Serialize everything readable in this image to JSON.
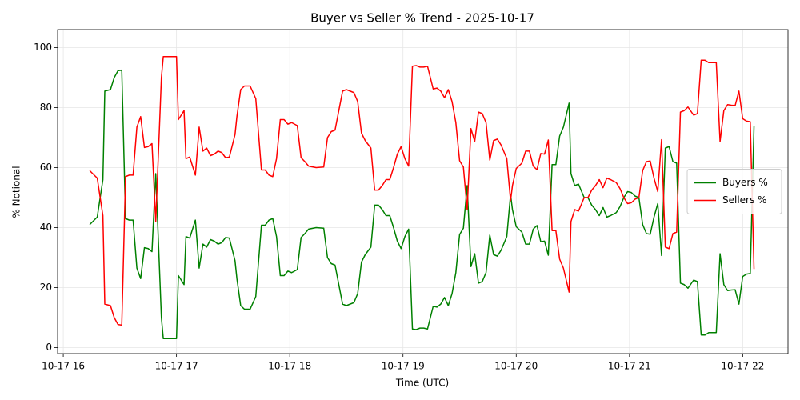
{
  "chart_data": {
    "type": "line",
    "title": "Buyer vs Seller % Trend - 2025-10-17",
    "xlabel": "Time (UTC)",
    "ylabel": "% Notional",
    "x": [
      "10-17 16:14",
      "10-17 16:18",
      "10-17 16:21",
      "10-17 16:22",
      "10-17 16:25",
      "10-17 16:27",
      "10-17 16:29",
      "10-17 16:31",
      "10-17 16:33",
      "10-17 16:35",
      "10-17 16:37",
      "10-17 16:39",
      "10-17 16:41",
      "10-17 16:43",
      "10-17 16:45",
      "10-17 16:47",
      "10-17 16:49",
      "10-17 16:50",
      "10-17 16:52",
      "10-17 16:53",
      "10-17 16:56",
      "10-17 16:58",
      "10-17 17:00",
      "10-17 17:01",
      "10-17 17:04",
      "10-17 17:05",
      "10-17 17:07",
      "10-17 17:10",
      "10-17 17:12",
      "10-17 17:14",
      "10-17 17:16",
      "10-17 17:18",
      "10-17 17:20",
      "10-17 17:22",
      "10-17 17:24",
      "10-17 17:26",
      "10-17 17:28",
      "10-17 17:31",
      "10-17 17:32",
      "10-17 17:34",
      "10-17 17:36",
      "10-17 17:39",
      "10-17 17:42",
      "10-17 17:45",
      "10-17 17:47",
      "10-17 17:49",
      "10-17 17:51",
      "10-17 17:53",
      "10-17 17:55",
      "10-17 17:57",
      "10-17 17:59",
      "10-17 18:01",
      "10-17 18:04",
      "10-17 18:06",
      "10-17 18:08",
      "10-17 18:10",
      "10-17 18:14",
      "10-17 18:18",
      "10-17 18:20",
      "10-17 18:22",
      "10-17 18:24",
      "10-17 18:26",
      "10-17 18:28",
      "10-17 18:30",
      "10-17 18:34",
      "10-17 18:36",
      "10-17 18:38",
      "10-17 18:40",
      "10-17 18:43",
      "10-17 18:45",
      "10-17 18:47",
      "10-17 18:49",
      "10-17 18:51",
      "10-17 18:53",
      "10-17 18:55",
      "10-17 18:57",
      "10-17 18:59",
      "10-17 19:01",
      "10-17 19:03",
      "10-17 19:05",
      "10-17 19:07",
      "10-17 19:09",
      "10-17 19:11",
      "10-17 19:13",
      "10-17 19:16",
      "10-17 19:18",
      "10-17 19:20",
      "10-17 19:22",
      "10-17 19:24",
      "10-17 19:26",
      "10-17 19:28",
      "10-17 19:30",
      "10-17 19:32",
      "10-17 19:34",
      "10-17 19:36",
      "10-17 19:38",
      "10-17 19:40",
      "10-17 19:42",
      "10-17 19:44",
      "10-17 19:46",
      "10-17 19:48",
      "10-17 19:50",
      "10-17 19:52",
      "10-17 19:55",
      "10-17 19:57",
      "10-17 19:58",
      "10-17 20:00",
      "10-17 20:03",
      "10-17 20:05",
      "10-17 20:07",
      "10-17 20:09",
      "10-17 20:11",
      "10-17 20:13",
      "10-17 20:15",
      "10-17 20:17",
      "10-17 20:19",
      "10-17 20:21",
      "10-17 20:23",
      "10-17 20:25",
      "10-17 20:28",
      "10-17 20:29",
      "10-17 20:31",
      "10-17 20:33",
      "10-17 20:36",
      "10-17 20:38",
      "10-17 20:40",
      "10-17 20:42",
      "10-17 20:44",
      "10-17 20:46",
      "10-17 20:48",
      "10-17 20:50",
      "10-17 20:53",
      "10-17 20:55",
      "10-17 20:57",
      "10-17 20:59",
      "10-17 21:01",
      "10-17 21:03",
      "10-17 21:05",
      "10-17 21:07",
      "10-17 21:09",
      "10-17 21:11",
      "10-17 21:13",
      "10-17 21:15",
      "10-17 21:17",
      "10-17 21:19",
      "10-17 21:21",
      "10-17 21:23",
      "10-17 21:25",
      "10-17 21:27",
      "10-17 21:29",
      "10-17 21:31",
      "10-17 21:34",
      "10-17 21:36",
      "10-17 21:38",
      "10-17 21:40",
      "10-17 21:42",
      "10-17 21:44",
      "10-17 21:46",
      "10-17 21:48",
      "10-17 21:50",
      "10-17 21:52",
      "10-17 21:54",
      "10-17 21:56",
      "10-17 21:58",
      "10-17 22:00",
      "10-17 22:02",
      "10-17 22:04",
      "10-17 22:06"
    ],
    "series": [
      {
        "name": "Buyers %",
        "color": "#008000",
        "values": [
          41,
          43.5,
          56,
          85.5,
          86,
          90,
          92.3,
          92.5,
          43,
          42.5,
          42.5,
          26.5,
          23,
          33.3,
          33,
          32,
          58,
          42,
          10,
          3,
          3,
          3,
          3,
          24,
          21,
          37,
          36.5,
          42.5,
          26.5,
          34.5,
          33.5,
          36,
          35.5,
          34.5,
          35,
          36.7,
          36.5,
          29,
          23,
          14,
          12.8,
          12.8,
          17,
          40.8,
          40.8,
          42.5,
          43,
          37,
          24,
          24,
          25.5,
          25,
          26,
          36.7,
          38,
          39.5,
          40,
          39.8,
          30,
          28,
          27.5,
          21,
          14.5,
          14,
          15,
          18,
          28.5,
          31,
          33.5,
          47.5,
          47.5,
          46,
          44,
          44,
          40,
          35.5,
          33,
          37,
          39.5,
          6.2,
          6,
          6.5,
          6.5,
          6.2,
          13.8,
          13.5,
          14.5,
          16.7,
          14,
          18,
          25,
          37.7,
          39.8,
          54,
          27,
          31.3,
          21.5,
          22,
          25,
          37.5,
          31,
          30.5,
          32.5,
          37,
          51,
          46,
          40.3,
          38.5,
          34.5,
          34.5,
          39.5,
          40.7,
          35.3,
          35.5,
          30.8,
          61,
          61,
          70.5,
          73.5,
          81.5,
          58,
          54,
          54.5,
          50,
          50,
          47.5,
          46,
          44,
          46.7,
          43.5,
          44,
          45,
          47,
          50,
          52,
          51.7,
          50.5,
          50,
          41,
          38,
          37.8,
          43.5,
          48,
          30.7,
          66.5,
          67,
          62,
          61.5,
          21.5,
          21,
          19.8,
          22.5,
          22,
          4.2,
          4.2,
          5,
          5,
          5,
          31.3,
          21,
          19,
          19.2,
          19.3,
          14.5,
          23.7,
          24.5,
          24.7,
          73.8
        ]
      },
      {
        "name": "Sellers %",
        "color": "#ff0000",
        "values": [
          59,
          56.5,
          44,
          14.5,
          14,
          10,
          7.7,
          7.5,
          57,
          57.5,
          57.5,
          73.5,
          77,
          66.7,
          67,
          68,
          42,
          58,
          90,
          97,
          97,
          97,
          97,
          76,
          79,
          63,
          63.5,
          57.5,
          73.5,
          65.5,
          66.5,
          64,
          64.5,
          65.5,
          65,
          63.3,
          63.5,
          71,
          77,
          86,
          87.2,
          87.2,
          83,
          59.2,
          59.2,
          57.5,
          57,
          63,
          76,
          76,
          74.5,
          75,
          74,
          63.3,
          62,
          60.5,
          60,
          60.2,
          70,
          72,
          72.5,
          79,
          85.5,
          86,
          85,
          82,
          71.5,
          69,
          66.5,
          52.5,
          52.5,
          54,
          56,
          56,
          60,
          64.5,
          67,
          63,
          60.5,
          93.8,
          94,
          93.5,
          93.5,
          93.8,
          86.2,
          86.5,
          85.5,
          83.3,
          86,
          82,
          75,
          62.3,
          60.2,
          46,
          73,
          68.7,
          78.5,
          78,
          75,
          62.5,
          69,
          69.5,
          67.5,
          63,
          49,
          54,
          59.7,
          61.5,
          65.5,
          65.5,
          60.5,
          59.3,
          64.7,
          64.5,
          69.2,
          39,
          39,
          29.5,
          26.5,
          18.5,
          42,
          46,
          45.5,
          50,
          50,
          52.5,
          54,
          56,
          53.3,
          56.5,
          56,
          55,
          53,
          50,
          48,
          48.3,
          49.5,
          50,
          59,
          62,
          62.2,
          56.5,
          52,
          69.3,
          33.5,
          33,
          38,
          38.5,
          78.5,
          79,
          80.2,
          77.5,
          78,
          95.8,
          95.8,
          95,
          95,
          95,
          68.7,
          79,
          81,
          80.8,
          80.7,
          85.5,
          76.3,
          75.5,
          75.3,
          26.2
        ]
      }
    ],
    "xlim": [
      "10-17 15:57",
      "10-17 22:24"
    ],
    "xticks": [
      {
        "value": "10-17 16:00",
        "label": "10-17 16"
      },
      {
        "value": "10-17 17:00",
        "label": "10-17 17"
      },
      {
        "value": "10-17 18:00",
        "label": "10-17 18"
      },
      {
        "value": "10-17 19:00",
        "label": "10-17 19"
      },
      {
        "value": "10-17 20:00",
        "label": "10-17 20"
      },
      {
        "value": "10-17 21:00",
        "label": "10-17 21"
      },
      {
        "value": "10-17 22:00",
        "label": "10-17 22"
      }
    ],
    "ylim": [
      -2,
      106
    ],
    "yticks": [
      0,
      20,
      40,
      60,
      80,
      100
    ],
    "grid": true,
    "legend": "center right"
  }
}
